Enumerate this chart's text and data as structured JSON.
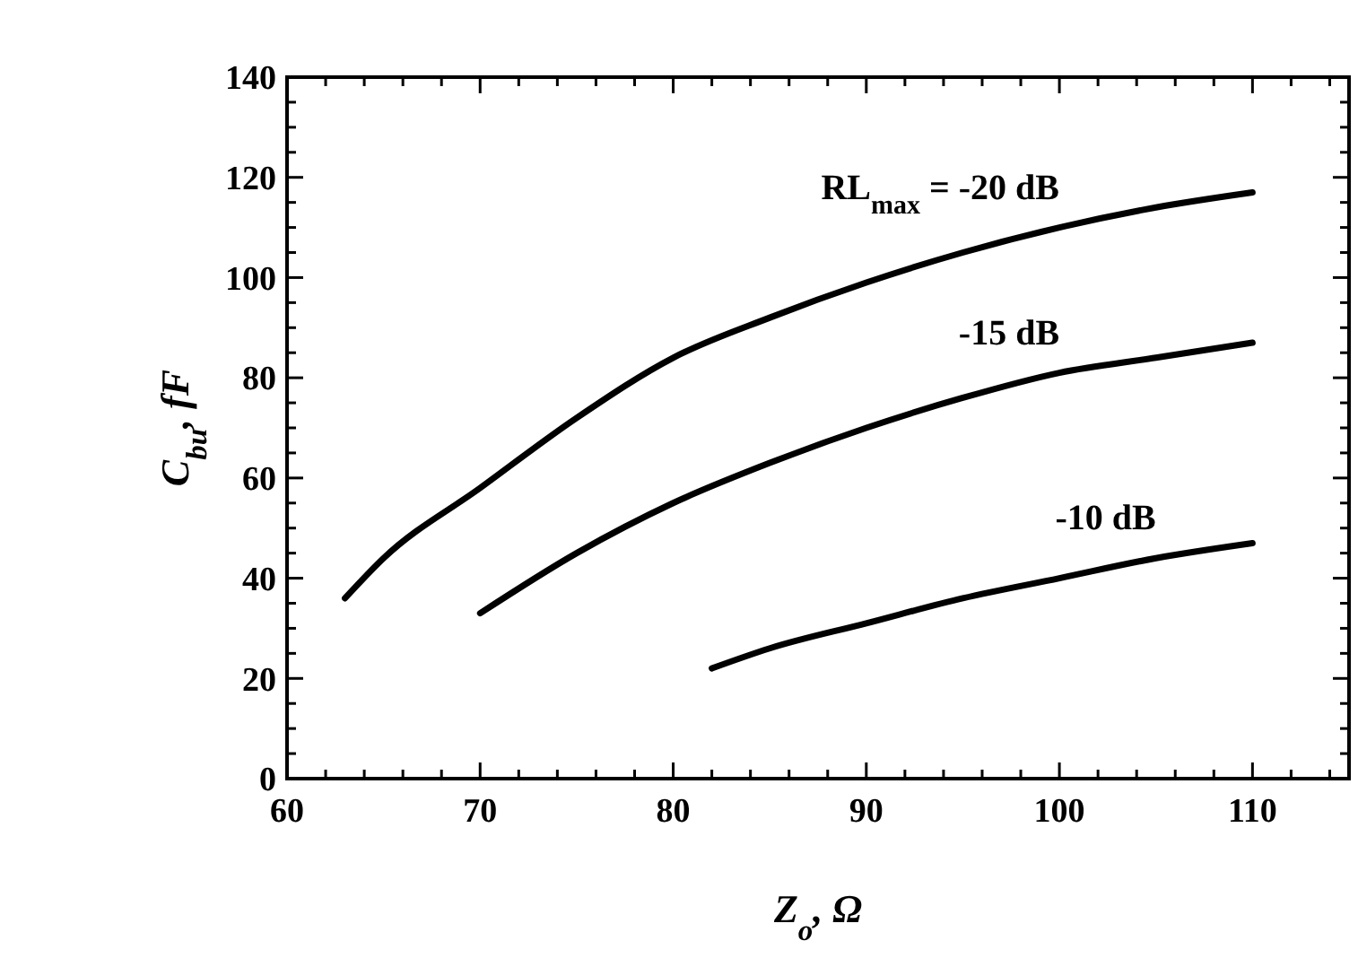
{
  "chart_data": {
    "type": "line",
    "xlabel": "Z$_{o}$, Ω",
    "ylabel": "C$_{bu}$, fF",
    "xlim": [
      60,
      115
    ],
    "xticks": [
      60,
      {
        "value": 62,
        "label": null
      },
      {
        "value": 64,
        "label": null
      },
      {
        "value": 66,
        "label": null
      },
      {
        "value": 68,
        "label": null
      },
      70,
      {
        "value": 72,
        "label": null
      },
      {
        "value": 74,
        "label": null
      },
      {
        "value": 76,
        "label": null
      },
      {
        "value": 78,
        "label": null
      },
      80,
      {
        "value": 82,
        "label": null
      },
      {
        "value": 84,
        "label": null
      },
      {
        "value": 86,
        "label": null
      },
      {
        "value": 88,
        "label": null
      },
      90,
      {
        "value": 92,
        "label": null
      },
      {
        "value": 94,
        "label": null
      },
      {
        "value": 96,
        "label": null
      },
      {
        "value": 98,
        "label": null
      },
      100,
      {
        "value": 102,
        "label": null
      },
      {
        "value": 104,
        "label": null
      },
      {
        "value": 106,
        "label": null
      },
      {
        "value": 108,
        "label": null
      },
      110,
      {
        "value": 112,
        "label": null
      },
      {
        "value": 114,
        "label": null
      }
    ],
    "ylim": [
      0,
      140
    ],
    "yticks": [
      0,
      {
        "value": 5,
        "label": null
      },
      {
        "value": 10,
        "label": null
      },
      {
        "value": 15,
        "label": null
      },
      20,
      {
        "value": 25,
        "label": null
      },
      {
        "value": 30,
        "label": null
      },
      {
        "value": 35,
        "label": null
      },
      40,
      {
        "value": 45,
        "label": null
      },
      {
        "value": 50,
        "label": null
      },
      {
        "value": 55,
        "label": null
      },
      60,
      {
        "value": 65,
        "label": null
      },
      {
        "value": 70,
        "label": null
      },
      {
        "value": 75,
        "label": null
      },
      80,
      {
        "value": 85,
        "label": null
      },
      {
        "value": 90,
        "label": null
      },
      {
        "value": 95,
        "label": null
      },
      100,
      {
        "value": 105,
        "label": null
      },
      {
        "value": 110,
        "label": null
      },
      {
        "value": 115,
        "label": null
      },
      120,
      {
        "value": 125,
        "label": null
      },
      {
        "value": 130,
        "label": null
      },
      {
        "value": 135,
        "label": null
      },
      140
    ],
    "grid": false,
    "line_style": "solid",
    "series": [
      {
        "name": "RL$_{max}$ = -20 dB",
        "color": "#000000",
        "x": [
          63,
          65,
          70,
          75,
          80,
          85,
          90,
          95,
          100,
          105,
          110
        ],
        "values": [
          36,
          44,
          58,
          72,
          84,
          92,
          99,
          105,
          110,
          114,
          117
        ]
      },
      {
        "name": "-15 dB",
        "color": "#000000",
        "x": [
          70,
          75,
          80,
          85,
          90,
          95,
          100,
          105,
          110
        ],
        "values": [
          33,
          45,
          55,
          63,
          70,
          76,
          81,
          84,
          87
        ]
      },
      {
        "name": "-10 dB",
        "color": "#000000",
        "x": [
          82,
          85,
          90,
          95,
          100,
          105,
          110
        ],
        "values": [
          22,
          26,
          31,
          36,
          40,
          44,
          47
        ]
      }
    ]
  }
}
